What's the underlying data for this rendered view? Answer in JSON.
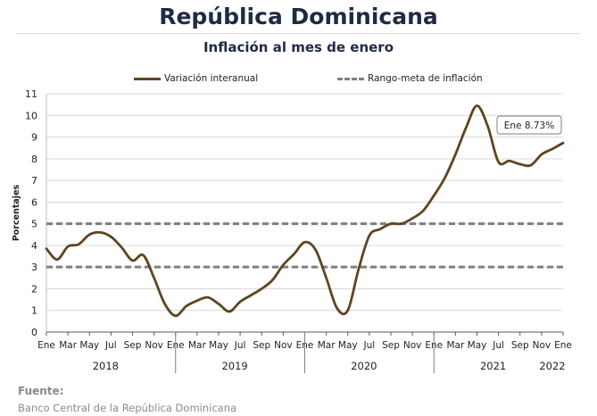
{
  "header": {
    "title": "República Dominicana",
    "subtitle": "Inflación al mes de enero"
  },
  "source": {
    "label": "Fuente:",
    "text": "Banco Central de la República Dominicana"
  },
  "chart_data": {
    "type": "line",
    "ylabel": "Porcentajes",
    "ylim": [
      0,
      11
    ],
    "yticks": [
      0,
      1,
      2,
      3,
      4,
      5,
      6,
      7,
      8,
      9,
      10,
      11
    ],
    "grid": true,
    "legend_position": "top",
    "x_tick_labels": [
      "Ene",
      "Mar",
      "May",
      "Jul",
      "Sep",
      "Nov",
      "Ene",
      "Mar",
      "May",
      "Jul",
      "Sep",
      "Nov",
      "Ene",
      "Mar",
      "May",
      "Jul",
      "Sep",
      "Nov",
      "Ene",
      "Mar",
      "May",
      "Jul",
      "Sep",
      "Nov",
      "Ene"
    ],
    "x_tick_months": [
      0,
      2,
      4,
      6,
      8,
      10,
      12,
      14,
      16,
      18,
      20,
      22,
      24,
      26,
      28,
      30,
      32,
      34,
      36,
      38,
      40,
      42,
      44,
      46,
      48
    ],
    "year_labels": [
      "2018",
      "2019",
      "2020",
      "2021",
      "2022"
    ],
    "series": [
      {
        "name": "Variación interanual",
        "color": "#5e4520",
        "style": "solid",
        "values": [
          3.85,
          3.35,
          3.95,
          4.05,
          4.5,
          4.6,
          4.4,
          3.9,
          3.3,
          3.55,
          2.5,
          1.3,
          0.75,
          1.2,
          1.45,
          1.6,
          1.3,
          0.95,
          1.4,
          1.7,
          2.0,
          2.4,
          3.1,
          3.6,
          4.15,
          3.8,
          2.5,
          1.1,
          1.0,
          2.9,
          4.45,
          4.75,
          5.0,
          5.0,
          5.25,
          5.6,
          6.3,
          7.1,
          8.2,
          9.45,
          10.45,
          9.5,
          7.85,
          7.9,
          7.75,
          7.7,
          8.2,
          8.45,
          8.73
        ]
      },
      {
        "name": "Rango-meta de inflación",
        "color": "#7f7f7f",
        "style": "dashed",
        "values": [
          5,
          3
        ]
      }
    ],
    "annotation": {
      "text": "Ene 8.73%",
      "month": 48,
      "value": 8.73
    }
  }
}
